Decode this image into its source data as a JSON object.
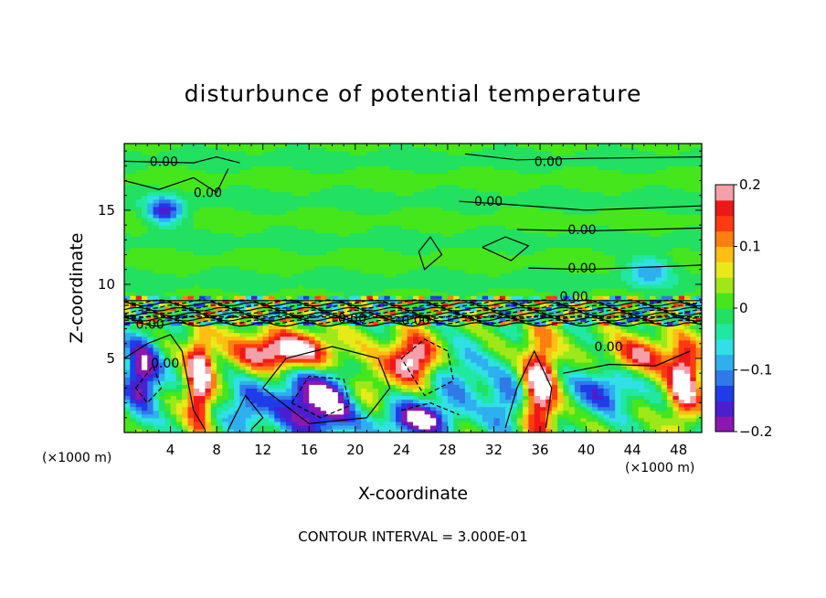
{
  "chart_data": {
    "type": "heatmap",
    "title": "disturbunce of potential temperature",
    "xlabel": "X-coordinate",
    "ylabel": "Z-coordinate",
    "x_unit": "(×1000 m)",
    "x_unit_right": "(×1000 m)",
    "xlim": [
      0,
      50
    ],
    "ylim": [
      0,
      19.5
    ],
    "x_ticks": [
      4,
      8,
      12,
      16,
      20,
      24,
      28,
      32,
      36,
      40,
      44,
      48
    ],
    "x_tick_labels": [
      "4",
      "8",
      "12",
      "16",
      "20",
      "24",
      "28",
      "32",
      "36",
      "40",
      "44",
      "48"
    ],
    "y_ticks": [
      5,
      10,
      15
    ],
    "y_tick_labels": [
      "5",
      "10",
      "15"
    ],
    "colorbar": {
      "range": [
        -0.2,
        0.2
      ],
      "ticks": [
        0.2,
        0.1,
        0,
        -0.1,
        -0.2
      ],
      "tick_labels": [
        "0.2",
        "0.1",
        "0",
        "−0.1",
        "−0.2"
      ],
      "colors": [
        "#8a18b0",
        "#4a1fd0",
        "#1f3ce8",
        "#2f7ae8",
        "#2fb0ee",
        "#30e0e6",
        "#20e8a0",
        "#22e060",
        "#46e61c",
        "#9ee81a",
        "#e6ea18",
        "#ffbf12",
        "#ff7f10",
        "#ff3a12",
        "#ee1818",
        "#f4a0a8"
      ]
    },
    "contour_interval_text": "CONTOUR INTERVAL = 3.000E-01",
    "contour_labels": [
      {
        "text": "0.00",
        "x": 2.2,
        "y": 18.3
      },
      {
        "text": "0.00",
        "x": 6.0,
        "y": 16.2
      },
      {
        "text": "0.00",
        "x": 35.5,
        "y": 18.3
      },
      {
        "text": "0.00",
        "x": 30.3,
        "y": 15.6
      },
      {
        "text": "0.00",
        "x": 38.4,
        "y": 13.7
      },
      {
        "text": "0.00",
        "x": 38.4,
        "y": 11.1
      },
      {
        "text": "0.00",
        "x": 37.7,
        "y": 9.2
      },
      {
        "text": "0.00",
        "x": 40.7,
        "y": 5.8
      },
      {
        "text": "0.00",
        "x": 1.0,
        "y": 7.3
      },
      {
        "text": "0.00",
        "x": 2.3,
        "y": 4.7
      },
      {
        "text": "0.00",
        "x": 18.5,
        "y": 7.7
      },
      {
        "text": "0.00",
        "x": 24.0,
        "y": 7.6
      }
    ]
  }
}
